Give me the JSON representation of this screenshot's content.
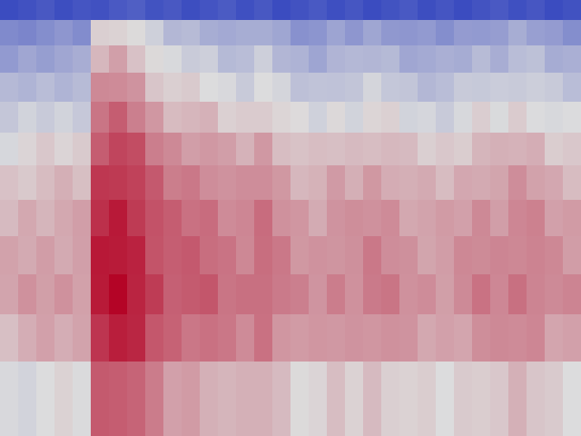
{
  "chart_data": {
    "type": "heatmap",
    "title": "",
    "xlabel": "",
    "ylabel": "",
    "colormap": "coolwarm",
    "colors": {
      "low": "#3b4cc0",
      "mid": "#dddddd",
      "high": "#b40426"
    },
    "value_range": [
      0,
      1
    ],
    "axes_visible": false,
    "grid": false,
    "n_time_bins": 32,
    "n_freq_bands": 12,
    "freq_band_order": "top-to-bottom",
    "band_profile": [
      0.02,
      0.25,
      0.33,
      0.4,
      0.47,
      0.55,
      0.6,
      0.64,
      0.66,
      0.68,
      0.64,
      0.52
    ],
    "column_energy": [
      0.42,
      0.45,
      0.46,
      0.47,
      0.47,
      0.95,
      1.0,
      0.93,
      0.8,
      0.72,
      0.7,
      0.68,
      0.62,
      0.6,
      0.66,
      0.58,
      0.52,
      0.5,
      0.55,
      0.53,
      0.58,
      0.56,
      0.51,
      0.49,
      0.48,
      0.52,
      0.57,
      0.55,
      0.6,
      0.58,
      0.52,
      0.5
    ]
  }
}
